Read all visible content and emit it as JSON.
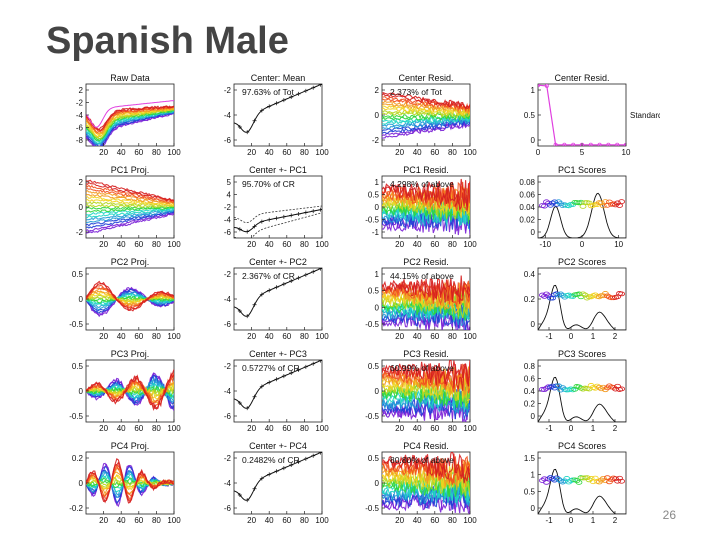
{
  "slide": {
    "title": "Spanish Male",
    "page_number": "26"
  },
  "colors": {
    "spectrum": [
      "#7a1fd6",
      "#1f3fd6",
      "#1f9bd6",
      "#1fd6c4",
      "#2fd63b",
      "#b5d61f",
      "#f2d21f",
      "#f29a1f",
      "#f2521f",
      "#d61f1f"
    ],
    "mean_curve": "#111111",
    "series_pink": "#e040e0"
  },
  "chart_data": [
    {
      "row": 0,
      "col": 0,
      "type": "line",
      "title": "Raw Data",
      "subtitle": "",
      "kind": "raw",
      "x": [
        20,
        40,
        60,
        80,
        100
      ],
      "yticks": [
        "2",
        "-2",
        "-4",
        "-6",
        "-8"
      ],
      "ylim": [
        -9,
        3
      ],
      "xlim": [
        0,
        100
      ]
    },
    {
      "row": 0,
      "col": 1,
      "type": "line",
      "title": "Center: Mean",
      "subtitle": "97.63% of Tot",
      "kind": "mean",
      "x": [
        20,
        40,
        60,
        80,
        100
      ],
      "yticks": [
        "-2",
        "-4",
        "-6"
      ],
      "ylim": [
        -7,
        -1
      ],
      "xlim": [
        0,
        100
      ]
    },
    {
      "row": 0,
      "col": 2,
      "type": "line",
      "title": "Center Resid.",
      "subtitle": "2.373% of Tot",
      "kind": "resid",
      "x": [
        20,
        40,
        60,
        80,
        100
      ],
      "yticks": [
        "2",
        "0",
        "-2"
      ],
      "ylim": [
        -3,
        3
      ],
      "xlim": [
        0,
        100
      ]
    },
    {
      "row": 0,
      "col": 3,
      "type": "line",
      "title": "Center Resid.",
      "subtitle": "",
      "kind": "scree",
      "x": [
        0,
        5,
        10
      ],
      "yticks": [
        "1",
        "0.5",
        "0"
      ],
      "ylim": [
        0,
        1
      ],
      "xlim": [
        0,
        10
      ],
      "side_label": "Standard P"
    },
    {
      "row": 1,
      "col": 0,
      "type": "line",
      "title": "PC1 Proj.",
      "subtitle": "",
      "kind": "proj",
      "x": [
        20,
        40,
        60,
        80,
        100
      ],
      "yticks": [
        "2",
        "0",
        "-2"
      ],
      "ylim": [
        -3,
        3
      ],
      "xlim": [
        0,
        100
      ]
    },
    {
      "row": 1,
      "col": 1,
      "type": "line",
      "title": "Center +- PC1",
      "subtitle": "95.70% of CR",
      "kind": "center_pc",
      "x": [
        20,
        40,
        60,
        80,
        100
      ],
      "yticks": [
        "5",
        "4",
        "-2",
        "-4",
        "-6"
      ],
      "ylim": [
        -7,
        6
      ],
      "xlim": [
        0,
        100
      ]
    },
    {
      "row": 1,
      "col": 2,
      "type": "line",
      "title": "PC1 Resid.",
      "subtitle": "4.298% of above",
      "kind": "pc_resid",
      "x": [
        20,
        40,
        60,
        80,
        100
      ],
      "yticks": [
        "1",
        "0.5",
        "0",
        "-0.5",
        "-1"
      ],
      "ylim": [
        -1,
        1
      ],
      "xlim": [
        0,
        100
      ]
    },
    {
      "row": 1,
      "col": 3,
      "type": "scatter",
      "title": "PC1 Scores",
      "subtitle": "",
      "kind": "scores",
      "x": [
        -10,
        0,
        10
      ],
      "xticklabels": [
        "-10",
        "0",
        "10"
      ],
      "yticks": [
        "0.08",
        "0.06",
        "0.04",
        "0.02",
        "0"
      ],
      "ylim": [
        0,
        0.09
      ],
      "xlim": [
        -12,
        12
      ]
    },
    {
      "row": 2,
      "col": 0,
      "type": "line",
      "title": "PC2 Proj.",
      "subtitle": "",
      "kind": "proj2",
      "x": [
        20,
        40,
        60,
        80,
        100
      ],
      "yticks": [
        "0.5",
        "0",
        "-0.5"
      ],
      "ylim": [
        -0.7,
        0.7
      ],
      "xlim": [
        0,
        100
      ]
    },
    {
      "row": 2,
      "col": 1,
      "type": "line",
      "title": "Center +- PC2",
      "subtitle": "2.367% of CR",
      "kind": "center_pc2",
      "x": [
        20,
        40,
        60,
        80,
        100
      ],
      "yticks": [
        "-2",
        "-4",
        "-6"
      ],
      "ylim": [
        -7,
        -1
      ],
      "xlim": [
        0,
        100
      ]
    },
    {
      "row": 2,
      "col": 2,
      "type": "line",
      "title": "PC2 Resid.",
      "subtitle": "44.15% of above",
      "kind": "pc_resid",
      "x": [
        20,
        40,
        60,
        80,
        100
      ],
      "yticks": [
        "1",
        "0.5",
        "0",
        "-0.5"
      ],
      "ylim": [
        -0.8,
        1.1
      ],
      "xlim": [
        0,
        100
      ]
    },
    {
      "row": 2,
      "col": 3,
      "type": "scatter",
      "title": "PC2 Scores",
      "subtitle": "",
      "kind": "scores2",
      "x": [
        -1,
        0,
        1,
        2
      ],
      "xticklabels": [
        "-1",
        "0",
        "1",
        "2"
      ],
      "yticks": [
        "0.4",
        "0.2",
        "0"
      ],
      "ylim": [
        0,
        0.5
      ],
      "xlim": [
        -1.5,
        2.5
      ]
    },
    {
      "row": 3,
      "col": 0,
      "type": "line",
      "title": "PC3 Proj.",
      "subtitle": "",
      "kind": "proj3",
      "x": [
        20,
        40,
        60,
        80,
        100
      ],
      "yticks": [
        "0.5",
        "0",
        "-0.5"
      ],
      "ylim": [
        -0.7,
        0.7
      ],
      "xlim": [
        0,
        100
      ]
    },
    {
      "row": 3,
      "col": 1,
      "type": "line",
      "title": "Center +- PC3",
      "subtitle": "0.5727% of CR",
      "kind": "center_pc2",
      "x": [
        20,
        40,
        60,
        80,
        100
      ],
      "yticks": [
        "-2",
        "-4",
        "-6"
      ],
      "ylim": [
        -7,
        -1
      ],
      "xlim": [
        0,
        100
      ]
    },
    {
      "row": 3,
      "col": 2,
      "type": "line",
      "title": "PC3 Resid.",
      "subtitle": "60.99% of above",
      "kind": "pc_resid",
      "x": [
        20,
        40,
        60,
        80,
        100
      ],
      "yticks": [
        "0.5",
        "0",
        "-0.5"
      ],
      "ylim": [
        -0.8,
        0.8
      ],
      "xlim": [
        0,
        100
      ]
    },
    {
      "row": 3,
      "col": 3,
      "type": "scatter",
      "title": "PC3 Scores",
      "subtitle": "",
      "kind": "scores3",
      "x": [
        -1,
        0,
        1,
        2
      ],
      "xticklabels": [
        "-1",
        "0",
        "1",
        "2"
      ],
      "yticks": [
        "0.8",
        "0.6",
        "0.4",
        "0.2",
        "0"
      ],
      "ylim": [
        0,
        0.9
      ],
      "xlim": [
        -1.5,
        2.5
      ]
    },
    {
      "row": 4,
      "col": 0,
      "type": "line",
      "title": "PC4 Proj.",
      "subtitle": "",
      "kind": "proj4",
      "x": [
        20,
        40,
        60,
        80,
        100
      ],
      "yticks": [
        "0.2",
        "0",
        "-0.2"
      ],
      "ylim": [
        -0.3,
        0.3
      ],
      "xlim": [
        0,
        100
      ]
    },
    {
      "row": 4,
      "col": 1,
      "type": "line",
      "title": "Center +- PC4",
      "subtitle": "0.2482% of CR",
      "kind": "center_pc2",
      "x": [
        20,
        40,
        60,
        80,
        100
      ],
      "yticks": [
        "-2",
        "-4",
        "-6"
      ],
      "ylim": [
        -7,
        -1
      ],
      "xlim": [
        0,
        100
      ]
    },
    {
      "row": 4,
      "col": 2,
      "type": "line",
      "title": "PC4 Resid.",
      "subtitle": "80.80% of above",
      "kind": "pc_resid",
      "x": [
        20,
        40,
        60,
        80,
        100
      ],
      "yticks": [
        "0.5",
        "0",
        "-0.5"
      ],
      "ylim": [
        -0.8,
        0.8
      ],
      "xlim": [
        0,
        100
      ]
    },
    {
      "row": 4,
      "col": 3,
      "type": "scatter",
      "title": "PC4 Scores",
      "subtitle": "",
      "kind": "scores4",
      "x": [
        -1,
        0,
        1,
        2
      ],
      "xticklabels": [
        "-1",
        "0",
        "1",
        "2"
      ],
      "yticks": [
        "1.5",
        "1",
        "0.5",
        "0"
      ],
      "ylim": [
        0,
        1.6
      ],
      "xlim": [
        -1.5,
        2.5
      ]
    }
  ]
}
